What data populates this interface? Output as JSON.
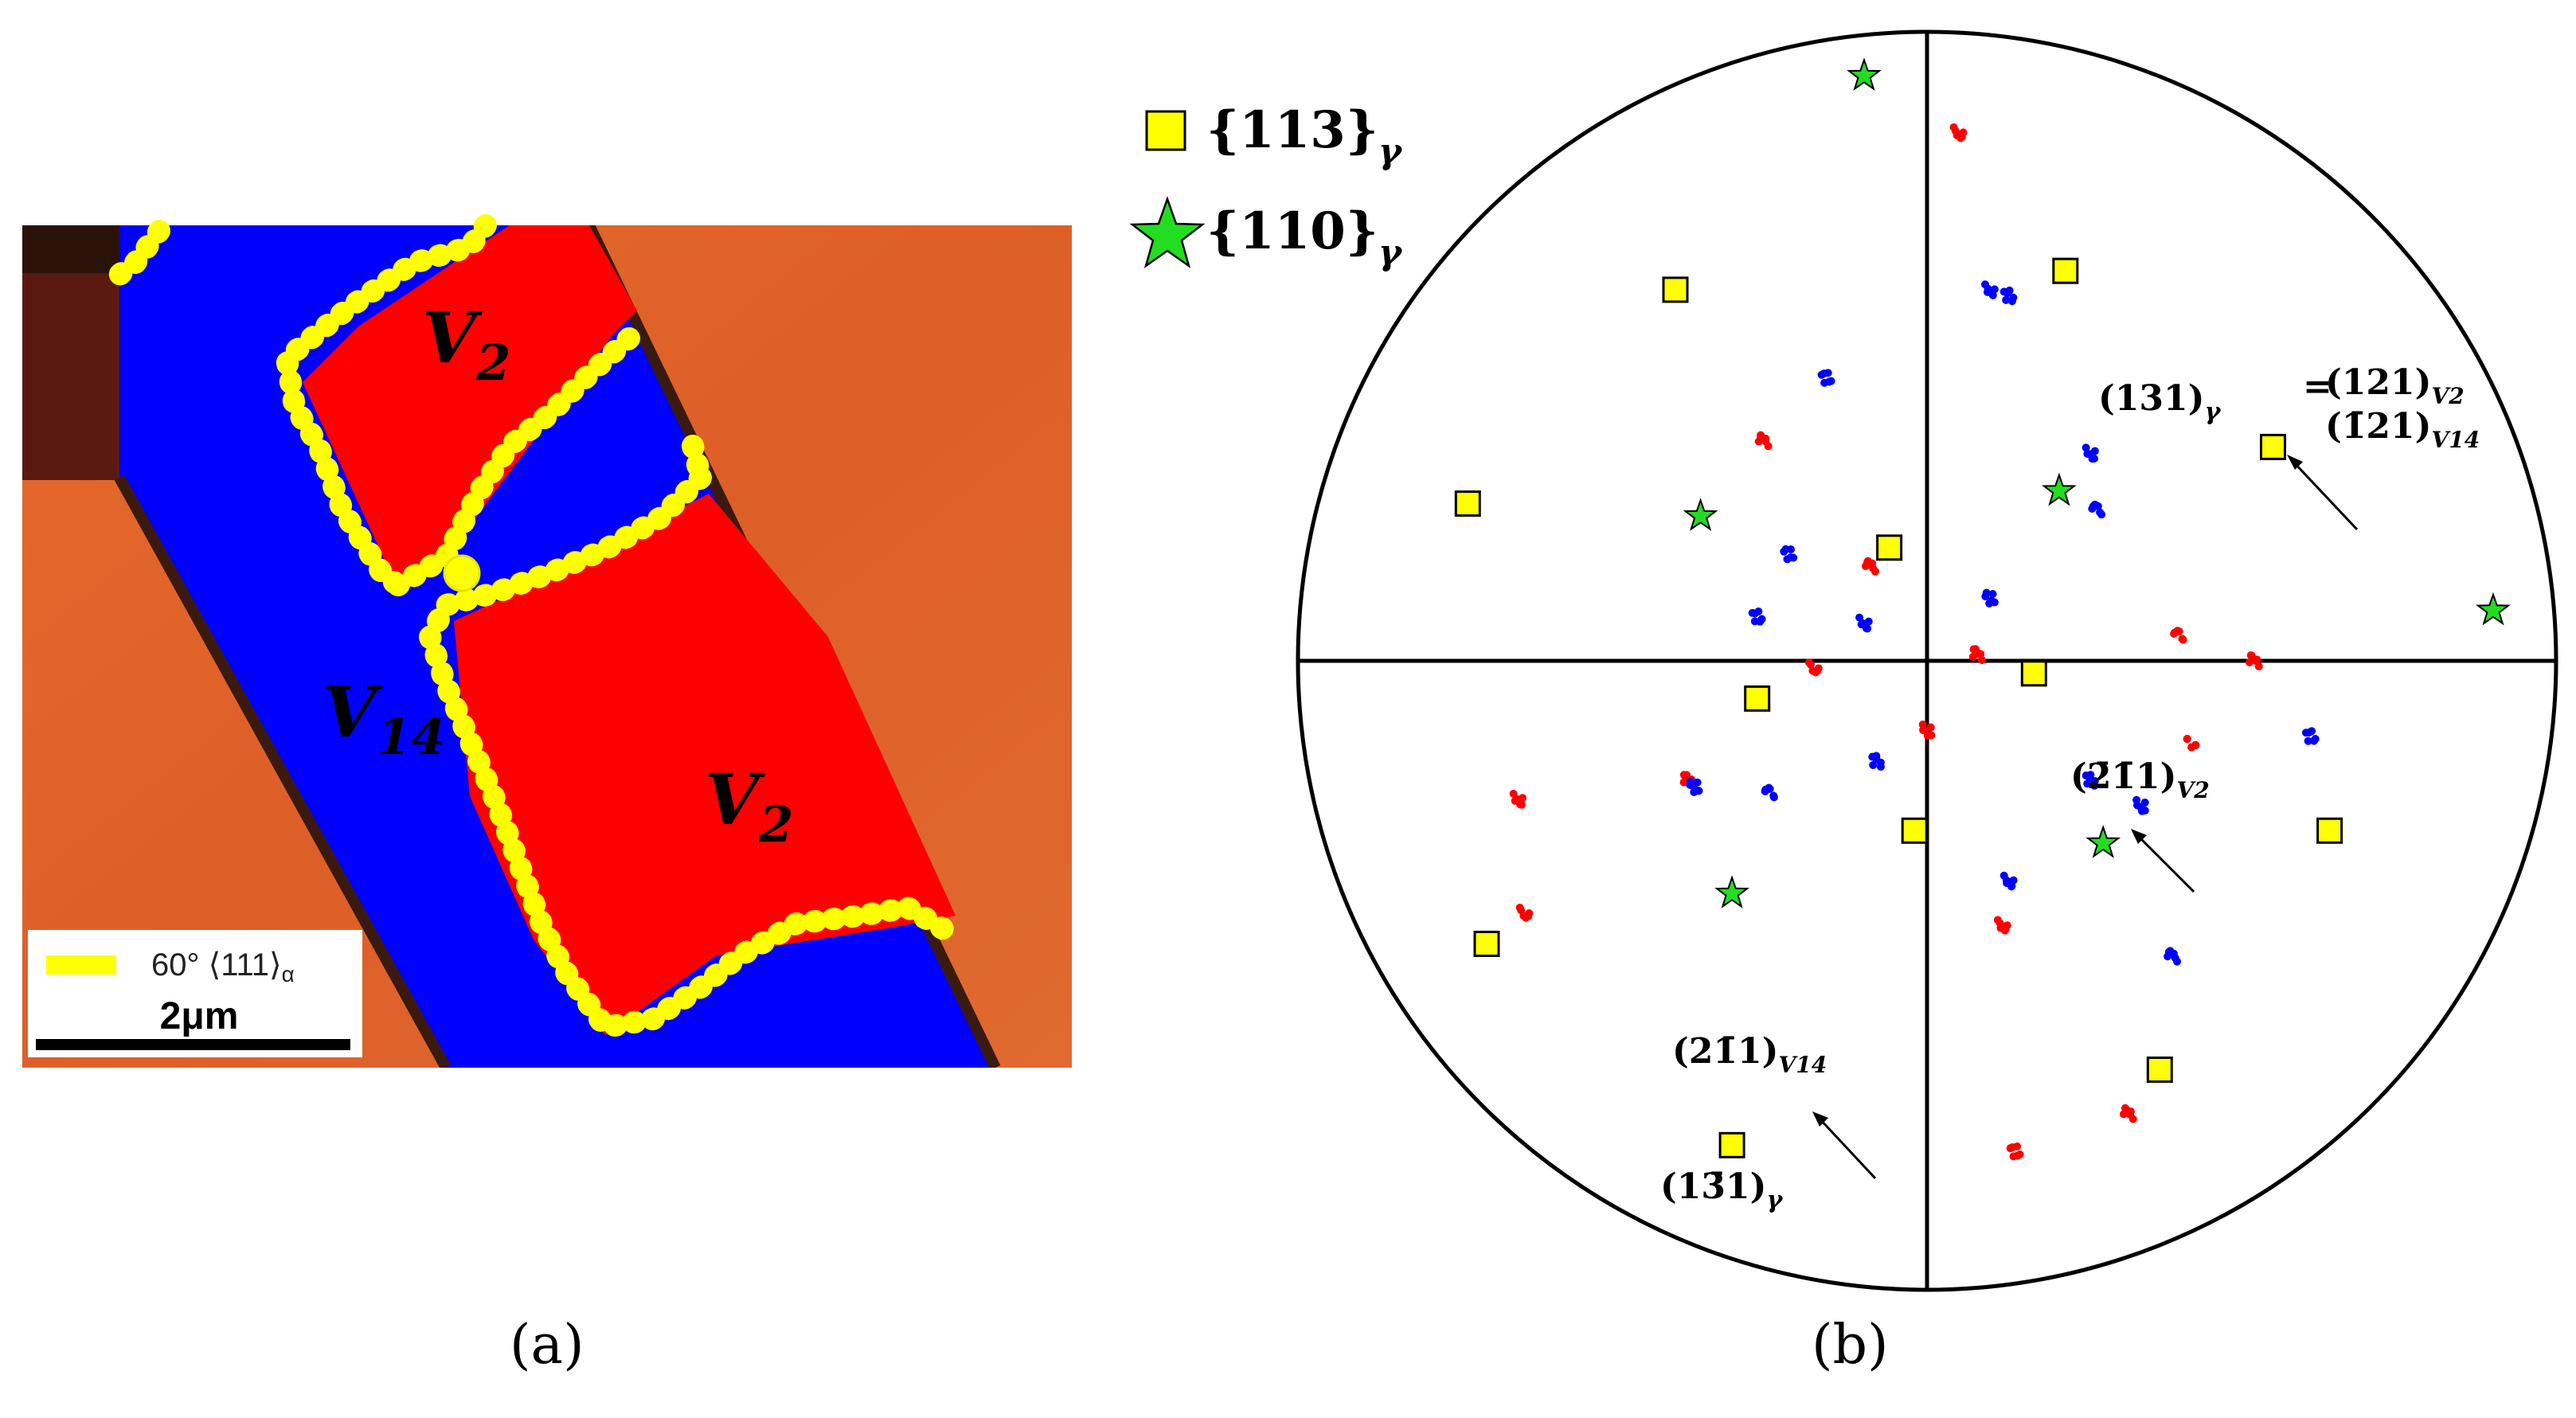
{
  "panel_a": {
    "caption": "(a)",
    "variant_labels": [
      {
        "base": "V",
        "sub": "2"
      },
      {
        "base": "V",
        "sub": "14"
      },
      {
        "base": "V",
        "sub": "2"
      }
    ],
    "legend": {
      "text": "60° ⟨111⟩",
      "subscript": "α",
      "color": "#ffff00"
    },
    "scalebar": {
      "label": "2μm"
    },
    "colors": {
      "matrix": "#e2622a",
      "v14": "#0000ff",
      "v2": "#ff0000",
      "boundary": "#ffff00"
    }
  },
  "panel_b": {
    "caption": "(b)",
    "legend": [
      {
        "marker": "square",
        "color": "#ffff00",
        "text": "{113}",
        "subscript": "γ"
      },
      {
        "marker": "star",
        "color": "#22dd22",
        "text": "{110}",
        "subscript": "γ"
      }
    ],
    "annotations": [
      {
        "text": "(131)",
        "sub": "γ"
      },
      {
        "text": "=",
        "sub": ""
      },
      {
        "text": "(121)",
        "sub": "V2"
      },
      {
        "text": "(1̄21)",
        "sub": "V14"
      },
      {
        "text": "(2̄1̄1)",
        "sub": "V2"
      },
      {
        "text": "(21̄1)",
        "sub": "V14"
      },
      {
        "text": "(13̄1)",
        "sub": "γ"
      }
    ],
    "colors": {
      "v2_pole": "#ff0000",
      "v14_pole": "#0000ff",
      "square": "#ffff00",
      "star": "#22dd22"
    },
    "chart_data": {
      "type": "scatter",
      "note_type": "stereographic pole figure",
      "series": [
        {
          "name": "{113}γ",
          "marker": "square",
          "points": [
            [
              -0.4,
              0.59
            ],
            [
              0.22,
              0.62
            ],
            [
              -0.73,
              0.25
            ],
            [
              -0.06,
              0.18
            ],
            [
              0.55,
              0.34
            ],
            [
              -0.27,
              -0.06
            ],
            [
              0.17,
              -0.02
            ],
            [
              -0.02,
              -0.27
            ],
            [
              0.64,
              -0.27
            ],
            [
              -0.7,
              -0.45
            ],
            [
              0.37,
              -0.65
            ],
            [
              -0.31,
              -0.77
            ]
          ]
        },
        {
          "name": "{110}γ",
          "marker": "star",
          "points": [
            [
              -0.1,
              0.93
            ],
            [
              -0.36,
              0.23
            ],
            [
              0.21,
              0.27
            ],
            [
              0.9,
              0.08
            ],
            [
              0.28,
              -0.29
            ],
            [
              -0.31,
              -0.37
            ]
          ]
        }
      ]
    }
  }
}
